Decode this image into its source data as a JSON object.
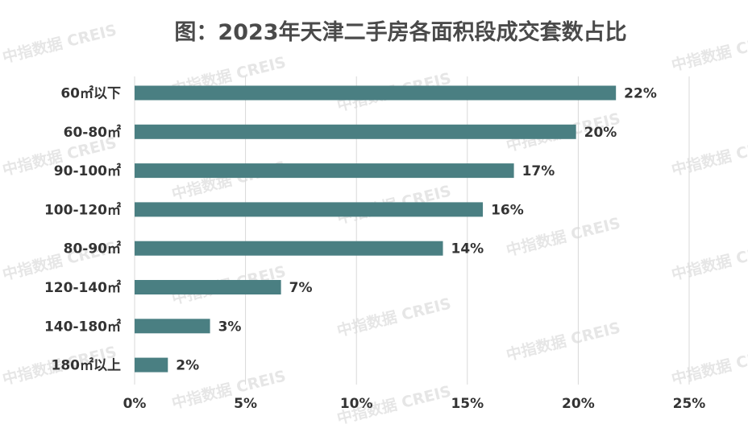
{
  "chart_data": {
    "type": "bar",
    "orientation": "horizontal",
    "title": "图：2023年天津二手房各面积段成交套数占比",
    "categories": [
      "60㎡以下",
      "60-80㎡",
      "90-100㎡",
      "100-120㎡",
      "80-90㎡",
      "120-140㎡",
      "140-180㎡",
      "180㎡以上"
    ],
    "values": [
      21.7,
      19.9,
      17.1,
      15.7,
      13.9,
      6.6,
      3.4,
      1.5
    ],
    "value_labels": [
      "22%",
      "20%",
      "17%",
      "16%",
      "14%",
      "7%",
      "3%",
      "2%"
    ],
    "xlim": [
      0,
      25
    ],
    "xticks": [
      0,
      5,
      10,
      15,
      20,
      25
    ],
    "xtick_labels": [
      "0%",
      "5%",
      "10%",
      "15%",
      "20%",
      "25%"
    ],
    "grid": true,
    "bar_color": "#4a7f82",
    "watermark": "中指数据 CREIS"
  }
}
